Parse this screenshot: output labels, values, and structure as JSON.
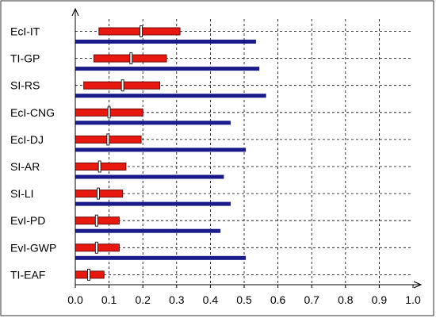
{
  "chart_data": {
    "type": "bar",
    "orientation": "horizontal",
    "categories": [
      "EcI-IT",
      "TI-GP",
      "SI-RS",
      "EcI-CNG",
      "EcI-DJ",
      "SI-AR",
      "SI-LI",
      "EvI-PD",
      "EvI-GWP",
      "TI-EAF"
    ],
    "series": [
      {
        "color": "#e8170f",
        "ranges": [
          [
            0.07,
            0.31
          ],
          [
            0.055,
            0.27
          ],
          [
            0.025,
            0.25
          ],
          [
            0.0,
            0.2
          ],
          [
            0.0,
            0.195
          ],
          [
            0.0,
            0.15
          ],
          [
            0.0,
            0.14
          ],
          [
            0.0,
            0.13
          ],
          [
            0.0,
            0.13
          ],
          [
            0.0,
            0.085
          ]
        ],
        "markers": [
          0.195,
          0.165,
          0.14,
          0.1,
          0.097,
          0.072,
          0.068,
          0.063,
          0.063,
          0.04
        ]
      },
      {
        "color": "#1a1a8a",
        "values": [
          0.535,
          0.545,
          0.565,
          0.46,
          0.505,
          0.44,
          0.46,
          0.43,
          0.505,
          null
        ]
      }
    ],
    "xlim": [
      0.0,
      1.0
    ],
    "xticks": [
      "0.0",
      "0.1",
      "0.2",
      "0.3",
      "0.4",
      "0.5",
      "0.6",
      "0.7",
      "0.8",
      "0.9",
      "1.0"
    ],
    "xlabel": "",
    "ylabel": "",
    "title": "",
    "grid": "dashed",
    "legend": "none"
  }
}
